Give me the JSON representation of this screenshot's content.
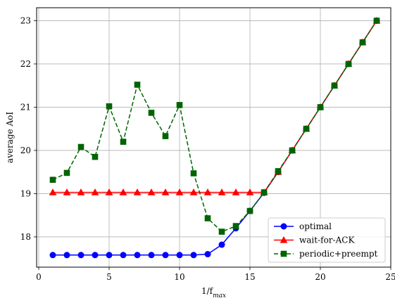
{
  "chart_data": {
    "type": "line",
    "title": "",
    "xlabel": "1/f_max",
    "xlabel_main": "1/f",
    "xlabel_sub": "max",
    "ylabel": "average AoI",
    "xlim": [
      -0.15,
      25
    ],
    "ylim": [
      17.3,
      23.3
    ],
    "xticks": [
      0,
      5,
      10,
      15,
      20,
      25
    ],
    "yticks": [
      18,
      19,
      20,
      21,
      22,
      23
    ],
    "grid": true,
    "legend_position": "lower-right",
    "series": [
      {
        "name": "optimal",
        "color": "#0000ff",
        "marker": "circle",
        "linestyle": "solid",
        "x": [
          1,
          2,
          3,
          4,
          5,
          6,
          7,
          8,
          9,
          10,
          11,
          12,
          13,
          14,
          15,
          16,
          17,
          18,
          19,
          20,
          21,
          22,
          23,
          24
        ],
        "y": [
          17.58,
          17.58,
          17.58,
          17.58,
          17.58,
          17.58,
          17.58,
          17.58,
          17.58,
          17.58,
          17.58,
          17.6,
          17.82,
          18.2,
          18.6,
          19.02,
          19.5,
          20.0,
          20.5,
          21.0,
          21.5,
          22.0,
          22.5,
          23.0
        ]
      },
      {
        "name": "wait-for-ACK",
        "color": "#ff0000",
        "marker": "triangle",
        "linestyle": "solid",
        "x": [
          1,
          2,
          3,
          4,
          5,
          6,
          7,
          8,
          9,
          10,
          11,
          12,
          13,
          14,
          15,
          16,
          17,
          18,
          19,
          20,
          21,
          22,
          23,
          24
        ],
        "y": [
          19.03,
          19.03,
          19.03,
          19.03,
          19.03,
          19.03,
          19.03,
          19.03,
          19.03,
          19.03,
          19.03,
          19.03,
          19.03,
          19.03,
          19.03,
          19.03,
          19.5,
          20.0,
          20.5,
          21.0,
          21.5,
          22.0,
          22.5,
          23.0
        ]
      },
      {
        "name": "periodic+preempt",
        "color": "#006400",
        "marker": "square",
        "linestyle": "dashed",
        "x": [
          1,
          2,
          3,
          4,
          5,
          6,
          7,
          8,
          9,
          10,
          11,
          12,
          13,
          14,
          15,
          16,
          17,
          18,
          19,
          20,
          21,
          22,
          23,
          24
        ],
        "y": [
          19.32,
          19.48,
          20.08,
          19.85,
          21.02,
          20.2,
          21.52,
          20.87,
          20.33,
          21.05,
          19.47,
          18.43,
          18.12,
          18.25,
          18.6,
          19.03,
          19.52,
          20.0,
          20.5,
          21.0,
          21.5,
          22.0,
          22.5,
          23.0
        ]
      }
    ]
  }
}
